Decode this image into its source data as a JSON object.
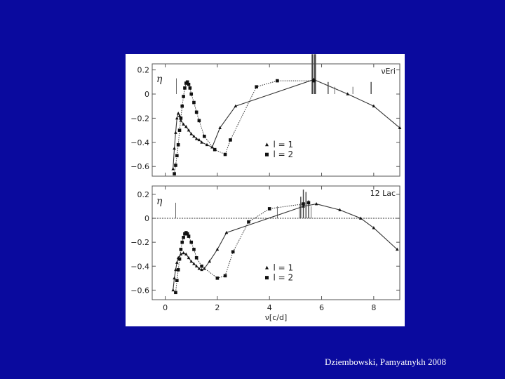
{
  "citation": "Dziembowski, Pamyatnykh 2008",
  "chart_data": [
    {
      "type": "line",
      "panel_label": "νEri",
      "ylabel": "η",
      "xlim": [
        -0.5,
        9
      ],
      "ylim": [
        -0.68,
        0.25
      ],
      "yticks": [
        0.2,
        0,
        -0.2,
        -0.4,
        -0.6
      ],
      "ytick_labels": [
        "0.2",
        "0",
        "−0.2",
        "−0.4",
        "−0.6"
      ],
      "xticks": [
        0,
        2,
        4,
        6,
        8
      ],
      "zero_line": false,
      "legend": {
        "placement": "center-right",
        "entries": [
          "l = 1",
          "l = 2"
        ]
      },
      "series": [
        {
          "name": "l = 1",
          "marker": "triangle",
          "line_style": "solid",
          "x": [
            0.3,
            0.35,
            0.4,
            0.45,
            0.5,
            0.55,
            0.6,
            0.7,
            0.8,
            0.9,
            1.0,
            1.1,
            1.2,
            1.3,
            1.4,
            1.6,
            1.8,
            2.1,
            2.7,
            5.7,
            7.0,
            8.0,
            9.0
          ],
          "y": [
            -0.62,
            -0.45,
            -0.32,
            -0.2,
            -0.16,
            -0.18,
            -0.22,
            -0.25,
            -0.27,
            -0.3,
            -0.33,
            -0.35,
            -0.37,
            -0.38,
            -0.4,
            -0.42,
            -0.44,
            -0.28,
            -0.1,
            0.12,
            0.0,
            -0.1,
            -0.28
          ]
        },
        {
          "name": "l = 2",
          "marker": "square",
          "line_style": "dotted",
          "x": [
            0.35,
            0.4,
            0.45,
            0.5,
            0.55,
            0.6,
            0.65,
            0.7,
            0.75,
            0.8,
            0.85,
            0.9,
            0.95,
            1.0,
            1.1,
            1.2,
            1.3,
            1.5,
            1.9,
            2.3,
            2.5,
            3.5,
            4.3,
            5.7
          ],
          "y": [
            -0.66,
            -0.59,
            -0.51,
            -0.42,
            -0.3,
            -0.2,
            -0.1,
            -0.02,
            0.05,
            0.09,
            0.1,
            0.08,
            0.05,
            0.0,
            -0.07,
            -0.15,
            -0.22,
            -0.35,
            -0.46,
            -0.5,
            -0.38,
            0.06,
            0.11,
            0.11
          ]
        }
      ],
      "observed_frequencies": [
        {
          "x": 0.43,
          "height": 0.13,
          "weight": "thin"
        },
        {
          "x": 5.65,
          "height": 0.33,
          "weight": "thick"
        },
        {
          "x": 5.75,
          "height": 0.33,
          "weight": "thick"
        },
        {
          "x": 6.25,
          "height": 0.1,
          "weight": "normal"
        },
        {
          "x": 6.5,
          "height": 0.06,
          "weight": "thin"
        },
        {
          "x": 7.2,
          "height": 0.06,
          "weight": "thin"
        },
        {
          "x": 7.9,
          "height": 0.1,
          "weight": "normal"
        }
      ]
    },
    {
      "type": "line",
      "panel_label": "12 Lac",
      "ylabel": "η",
      "xlabel": "ν[c/d]",
      "xlim": [
        -0.5,
        9
      ],
      "ylim": [
        -0.68,
        0.27
      ],
      "yticks": [
        0.2,
        0,
        -0.2,
        -0.4,
        -0.6
      ],
      "ytick_labels": [
        "0.2",
        "0",
        "−0.2",
        "−0.4",
        "−0.6"
      ],
      "xticks": [
        0,
        2,
        4,
        6,
        8
      ],
      "xtick_labels": [
        "0",
        "2",
        "4",
        "6",
        "8"
      ],
      "zero_line": true,
      "legend": {
        "placement": "center-right",
        "entries": [
          "l = 1",
          "l = 2"
        ]
      },
      "series": [
        {
          "name": "l = 1",
          "marker": "triangle",
          "line_style": "solid",
          "x": [
            0.3,
            0.35,
            0.4,
            0.45,
            0.5,
            0.6,
            0.7,
            0.8,
            0.9,
            1.0,
            1.1,
            1.2,
            1.3,
            1.4,
            1.5,
            1.7,
            2.0,
            2.35,
            5.3,
            5.8,
            6.7,
            7.5,
            8.0,
            8.9
          ],
          "y": [
            -0.6,
            -0.5,
            -0.43,
            -0.37,
            -0.33,
            -0.3,
            -0.29,
            -0.3,
            -0.33,
            -0.36,
            -0.38,
            -0.4,
            -0.42,
            -0.43,
            -0.42,
            -0.36,
            -0.26,
            -0.12,
            0.1,
            0.12,
            0.07,
            0.0,
            -0.08,
            -0.26
          ]
        },
        {
          "name": "l = 2",
          "marker": "square",
          "line_style": "dotted",
          "x": [
            0.4,
            0.45,
            0.5,
            0.55,
            0.6,
            0.65,
            0.7,
            0.75,
            0.8,
            0.85,
            0.9,
            1.0,
            1.1,
            1.2,
            1.4,
            2.0,
            2.3,
            2.6,
            3.2,
            4.0,
            5.3,
            5.5
          ],
          "y": [
            -0.62,
            -0.52,
            -0.43,
            -0.34,
            -0.26,
            -0.2,
            -0.16,
            -0.13,
            -0.12,
            -0.13,
            -0.15,
            -0.2,
            -0.26,
            -0.33,
            -0.4,
            -0.5,
            -0.48,
            -0.28,
            -0.03,
            0.08,
            0.12,
            0.13
          ]
        }
      ],
      "observed_frequencies": [
        {
          "x": 0.4,
          "height": 0.13,
          "weight": "thin"
        },
        {
          "x": 4.3,
          "height": 0.1,
          "weight": "thin"
        },
        {
          "x": 5.2,
          "height": 0.18,
          "weight": "normal"
        },
        {
          "x": 5.3,
          "height": 0.24,
          "weight": "normal"
        },
        {
          "x": 5.4,
          "height": 0.22,
          "weight": "normal"
        },
        {
          "x": 5.5,
          "height": 0.15,
          "weight": "normal"
        },
        {
          "x": 5.6,
          "height": 0.1,
          "weight": "thin"
        },
        {
          "x": 5.15,
          "height": 0.12,
          "weight": "thin"
        }
      ]
    }
  ]
}
